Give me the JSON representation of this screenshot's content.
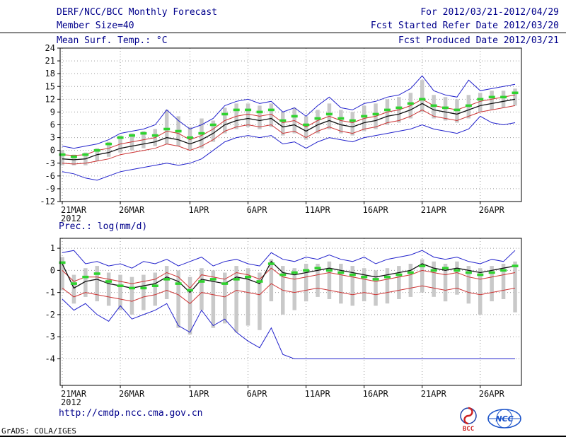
{
  "header": {
    "title": "DERF/NCC/BCC Monthly Forecast",
    "for_range": "For 2012/03/21-2012/04/29",
    "member_size": "Member Size=40",
    "fcst_started": "Fcst Started Refer Date 2012/03/20",
    "fcst_produced": "Fcst Produced Date 2012/03/21"
  },
  "footer": {
    "url": "http://cmdp.ncc.cma.gov.cn",
    "credit": "GrADS: COLA/IGES",
    "logos": {
      "bcc": "BCC",
      "ncc": "NCC"
    }
  },
  "colors": {
    "header_text": "#00008b",
    "axis_text": "#111111",
    "grid": "#999999",
    "spread_bar": "#c9c9c9",
    "extreme_line": "#2222cc",
    "quartile_line": "#cc3333",
    "median_line": "#111111",
    "mean_marker": "#2fd32f"
  },
  "chart_data": [
    {
      "type": "line",
      "title": "Mean Surf. Temp.: °C",
      "year_label": "2012",
      "n_points": 40,
      "ylim": [
        -12,
        24
      ],
      "yticks": [
        24,
        21,
        18,
        15,
        12,
        9,
        6,
        3,
        0,
        -3,
        -6,
        -9,
        -12
      ],
      "xticks": [
        {
          "index": 0,
          "label": "21MAR"
        },
        {
          "index": 5,
          "label": "26MAR"
        },
        {
          "index": 11,
          "label": "1APR"
        },
        {
          "index": 16,
          "label": "6APR"
        },
        {
          "index": 21,
          "label": "11APR"
        },
        {
          "index": 26,
          "label": "16APR"
        },
        {
          "index": 31,
          "label": "21APR"
        },
        {
          "index": 36,
          "label": "26APR"
        }
      ],
      "series": [
        {
          "name": "ensemble-spread-bar",
          "style": "bar",
          "color": "#c9c9c9",
          "top": [
            0.0,
            -1.0,
            -0.5,
            0.5,
            2.0,
            3.5,
            4.0,
            4.5,
            5.0,
            9.5,
            8.0,
            5.5,
            7.5,
            7.0,
            10.0,
            11.0,
            11.0,
            10.5,
            11.0,
            9.0,
            10.0,
            8.0,
            9.5,
            11.0,
            9.5,
            9.0,
            10.5,
            11.0,
            12.0,
            12.5,
            13.5,
            16.5,
            13.0,
            12.5,
            12.0,
            13.0,
            13.5,
            14.0,
            14.0,
            14.5
          ],
          "bottom": [
            -3.5,
            -3.5,
            -3.5,
            -2.5,
            -1.5,
            -0.5,
            0.0,
            0.5,
            1.0,
            1.5,
            1.0,
            0.0,
            0.5,
            2.0,
            4.0,
            5.0,
            5.5,
            5.0,
            5.5,
            3.5,
            4.0,
            2.5,
            4.0,
            5.0,
            4.0,
            3.5,
            4.5,
            5.0,
            6.0,
            6.5,
            7.5,
            9.0,
            7.5,
            7.0,
            6.5,
            7.5,
            9.0,
            9.5,
            10.0,
            10.5
          ]
        },
        {
          "name": "ensemble-max",
          "style": "line",
          "color": "#2222cc",
          "values": [
            1.0,
            0.5,
            1.0,
            1.5,
            2.5,
            4.0,
            4.5,
            5.0,
            6.0,
            9.5,
            7.0,
            5.0,
            6.0,
            7.5,
            10.5,
            11.5,
            12.0,
            11.0,
            11.5,
            9.0,
            10.0,
            8.0,
            10.5,
            12.5,
            10.0,
            9.5,
            11.0,
            11.5,
            12.5,
            13.0,
            14.5,
            17.5,
            14.0,
            13.0,
            12.5,
            16.5,
            14.0,
            14.5,
            15.0,
            15.5
          ]
        },
        {
          "name": "ensemble-min",
          "style": "line",
          "color": "#2222cc",
          "values": [
            -5.0,
            -5.5,
            -6.5,
            -7.0,
            -6.0,
            -5.0,
            -4.5,
            -4.0,
            -3.5,
            -3.0,
            -3.5,
            -3.0,
            -2.0,
            0.0,
            2.0,
            3.0,
            3.5,
            3.0,
            3.5,
            1.5,
            2.0,
            0.5,
            2.0,
            3.0,
            2.5,
            2.0,
            3.0,
            3.5,
            4.0,
            4.5,
            5.0,
            6.0,
            5.0,
            4.5,
            4.0,
            5.0,
            8.0,
            6.5,
            6.0,
            6.5
          ]
        },
        {
          "name": "upper-quartile",
          "style": "line",
          "color": "#cc3333",
          "values": [
            -1.0,
            -1.2,
            -1.0,
            0.0,
            0.5,
            1.5,
            2.0,
            2.5,
            3.0,
            4.5,
            4.0,
            2.5,
            3.5,
            5.0,
            7.0,
            8.0,
            8.5,
            8.0,
            8.5,
            6.5,
            7.0,
            5.5,
            7.0,
            8.0,
            7.0,
            6.5,
            7.5,
            8.0,
            9.0,
            9.5,
            10.5,
            12.0,
            10.5,
            10.0,
            9.5,
            10.5,
            11.5,
            12.0,
            12.5,
            13.0
          ]
        },
        {
          "name": "lower-quartile",
          "style": "line",
          "color": "#cc3333",
          "values": [
            -3.0,
            -3.2,
            -3.0,
            -2.5,
            -2.0,
            -1.0,
            -0.5,
            0.0,
            0.5,
            1.5,
            1.0,
            0.0,
            1.0,
            2.5,
            4.5,
            5.5,
            6.0,
            5.5,
            6.0,
            4.0,
            4.5,
            3.0,
            4.5,
            5.5,
            4.5,
            4.0,
            5.0,
            5.5,
            6.5,
            7.0,
            8.0,
            9.5,
            8.0,
            7.5,
            7.0,
            8.0,
            9.0,
            9.5,
            10.0,
            10.5
          ]
        },
        {
          "name": "ensemble-median",
          "style": "line",
          "color": "#111111",
          "width": 1.3,
          "values": [
            -2.0,
            -2.2,
            -2.0,
            -1.0,
            -0.5,
            0.5,
            1.0,
            1.5,
            2.0,
            3.0,
            2.5,
            1.5,
            2.5,
            4.0,
            6.0,
            7.0,
            7.5,
            7.0,
            7.5,
            5.5,
            6.0,
            4.5,
            6.0,
            7.0,
            6.0,
            5.5,
            6.5,
            7.0,
            8.0,
            8.5,
            9.5,
            11.0,
            9.5,
            9.0,
            8.5,
            9.5,
            10.5,
            11.0,
            11.5,
            12.0
          ]
        },
        {
          "name": "ensemble-mean-marker",
          "style": "dash-marker",
          "color": "#2fd32f",
          "values": [
            -1.0,
            -1.5,
            -1.0,
            0.0,
            1.5,
            3.0,
            3.5,
            4.0,
            3.5,
            5.0,
            4.5,
            3.0,
            4.0,
            6.0,
            8.5,
            9.5,
            9.5,
            9.0,
            9.5,
            7.0,
            8.0,
            6.0,
            7.5,
            8.5,
            7.5,
            7.0,
            8.0,
            8.5,
            9.5,
            10.0,
            11.0,
            12.0,
            10.5,
            10.0,
            9.5,
            10.5,
            12.0,
            12.5,
            12.5,
            13.5
          ]
        }
      ]
    },
    {
      "type": "line",
      "title": "Prec.: log(mm/d)",
      "year_label": "2012",
      "n_points": 40,
      "ylim": [
        -5.2,
        1.45
      ],
      "yticks": [
        1,
        0,
        -1,
        -2,
        -3,
        -4
      ],
      "xticks": [
        {
          "index": 0,
          "label": "21MAR"
        },
        {
          "index": 5,
          "label": "26MAR"
        },
        {
          "index": 11,
          "label": "1APR"
        },
        {
          "index": 16,
          "label": "6APR"
        },
        {
          "index": 21,
          "label": "11APR"
        },
        {
          "index": 26,
          "label": "16APR"
        },
        {
          "index": 31,
          "label": "21APR"
        },
        {
          "index": 36,
          "label": "26APR"
        }
      ],
      "series": [
        {
          "name": "ensemble-spread-bar",
          "style": "bar",
          "color": "#c9c9c9",
          "top": [
            0.6,
            -0.2,
            0.1,
            0.2,
            -0.1,
            -0.2,
            -0.3,
            -0.2,
            -0.1,
            0.2,
            0.0,
            -0.3,
            0.1,
            0.0,
            -0.1,
            0.2,
            0.1,
            -0.1,
            0.5,
            0.2,
            0.1,
            0.3,
            0.3,
            0.4,
            0.3,
            0.2,
            0.1,
            0.0,
            0.1,
            0.2,
            0.3,
            0.5,
            0.4,
            0.3,
            0.4,
            0.2,
            0.1,
            0.2,
            0.3,
            0.4
          ],
          "bottom": [
            -0.9,
            -1.5,
            -1.2,
            -1.4,
            -1.6,
            -1.8,
            -2.0,
            -1.8,
            -1.6,
            -1.3,
            -2.6,
            -2.9,
            -1.8,
            -2.6,
            -2.4,
            -2.8,
            -2.5,
            -2.7,
            -1.4,
            -2.0,
            -1.8,
            -1.4,
            -1.2,
            -1.3,
            -1.5,
            -1.6,
            -1.4,
            -1.6,
            -1.5,
            -1.3,
            -1.2,
            -1.0,
            -1.2,
            -1.4,
            -1.1,
            -1.5,
            -2.0,
            -1.4,
            -1.3,
            -1.9
          ]
        },
        {
          "name": "ensemble-max",
          "style": "line",
          "color": "#2222cc",
          "values": [
            0.8,
            0.9,
            0.3,
            0.4,
            0.2,
            0.3,
            0.1,
            0.4,
            0.3,
            0.5,
            0.2,
            0.4,
            0.6,
            0.2,
            0.4,
            0.5,
            0.3,
            0.2,
            0.8,
            0.5,
            0.4,
            0.6,
            0.5,
            0.7,
            0.5,
            0.4,
            0.6,
            0.3,
            0.5,
            0.6,
            0.7,
            0.9,
            0.6,
            0.5,
            0.6,
            0.4,
            0.3,
            0.5,
            0.4,
            0.9
          ]
        },
        {
          "name": "ensemble-min",
          "style": "line",
          "color": "#2222cc",
          "values": [
            -1.3,
            -1.8,
            -1.5,
            -2.0,
            -2.3,
            -1.6,
            -2.2,
            -2.0,
            -1.8,
            -1.5,
            -2.5,
            -2.8,
            -1.8,
            -2.5,
            -2.2,
            -2.8,
            -3.2,
            -3.5,
            -2.6,
            -3.8,
            -4.0,
            -4.0,
            -4.0,
            -4.0,
            -4.0,
            -4.0,
            -4.0,
            -4.0,
            -4.0,
            -4.0,
            -4.0,
            -4.0,
            -4.0,
            -4.0,
            -4.0,
            -4.0,
            -4.0,
            -4.0,
            -4.0,
            -4.0
          ]
        },
        {
          "name": "upper-quartile",
          "style": "line",
          "color": "#cc3333",
          "values": [
            0.0,
            -0.5,
            -0.3,
            -0.3,
            -0.4,
            -0.5,
            -0.6,
            -0.5,
            -0.4,
            -0.1,
            -0.3,
            -0.8,
            -0.2,
            -0.3,
            -0.4,
            -0.1,
            -0.2,
            -0.4,
            0.1,
            -0.3,
            -0.4,
            -0.3,
            -0.2,
            -0.1,
            -0.2,
            -0.3,
            -0.4,
            -0.5,
            -0.4,
            -0.3,
            -0.2,
            0.0,
            -0.1,
            -0.2,
            -0.1,
            -0.3,
            -0.4,
            -0.3,
            -0.2,
            -0.1
          ]
        },
        {
          "name": "lower-quartile",
          "style": "line",
          "color": "#cc3333",
          "values": [
            -0.8,
            -1.2,
            -1.0,
            -1.1,
            -1.2,
            -1.3,
            -1.4,
            -1.2,
            -1.1,
            -0.9,
            -1.1,
            -1.5,
            -1.0,
            -1.1,
            -1.2,
            -0.9,
            -1.0,
            -1.1,
            -0.6,
            -0.9,
            -1.0,
            -0.9,
            -0.8,
            -0.9,
            -1.0,
            -1.1,
            -1.0,
            -1.1,
            -1.0,
            -0.9,
            -0.8,
            -0.7,
            -0.8,
            -0.9,
            -0.8,
            -1.0,
            -1.1,
            -1.0,
            -0.9,
            -0.8
          ]
        },
        {
          "name": "ensemble-median",
          "style": "line",
          "color": "#111111",
          "width": 1.3,
          "values": [
            0.3,
            -0.8,
            -0.5,
            -0.4,
            -0.6,
            -0.7,
            -0.8,
            -0.7,
            -0.6,
            -0.3,
            -0.5,
            -1.0,
            -0.4,
            -0.5,
            -0.6,
            -0.3,
            -0.4,
            -0.6,
            0.4,
            -0.1,
            -0.2,
            -0.1,
            0.0,
            0.1,
            0.0,
            -0.1,
            -0.2,
            -0.3,
            -0.2,
            -0.1,
            0.0,
            0.3,
            0.1,
            0.0,
            0.1,
            0.0,
            -0.1,
            0.0,
            0.1,
            0.2
          ]
        },
        {
          "name": "ensemble-mean-marker",
          "style": "dash-marker",
          "color": "#2fd32f",
          "values": [
            0.35,
            -0.6,
            -0.3,
            -0.15,
            -0.5,
            -0.7,
            -0.8,
            -0.8,
            -0.7,
            -0.4,
            -0.6,
            -0.9,
            -0.5,
            -0.4,
            -0.6,
            -0.4,
            -0.3,
            -0.5,
            0.3,
            -0.2,
            -0.1,
            0.0,
            0.1,
            0.0,
            -0.1,
            -0.2,
            -0.3,
            -0.4,
            -0.3,
            -0.2,
            -0.1,
            0.2,
            0.0,
            0.1,
            0.0,
            -0.1,
            -0.2,
            -0.1,
            0.0,
            0.2
          ]
        }
      ]
    }
  ]
}
